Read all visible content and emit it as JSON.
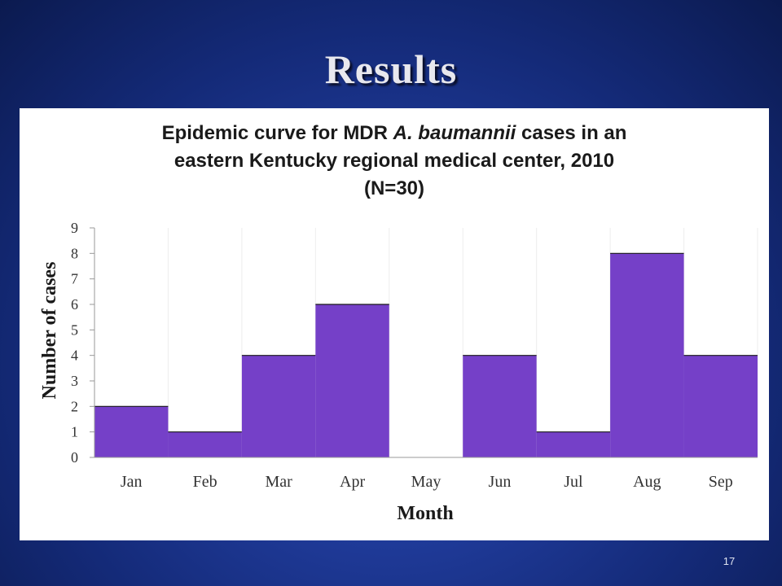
{
  "slide": {
    "title": "Results",
    "page_number": "17"
  },
  "chart_data": {
    "type": "bar",
    "title_parts": {
      "before": "Epidemic curve for MDR ",
      "italic": "A. baumannii",
      "after": " cases in an",
      "line2": "eastern Kentucky regional medical center, 2010",
      "line3": "(N=30)"
    },
    "categories": [
      "Jan",
      "Feb",
      "Mar",
      "Apr",
      "May",
      "Jun",
      "Jul",
      "Aug",
      "Sep"
    ],
    "values": [
      2,
      1,
      4,
      6,
      0,
      4,
      1,
      8,
      4
    ],
    "xlabel": "Month",
    "ylabel": "Number of cases",
    "ylim": [
      0,
      9
    ],
    "yticks": [
      "0",
      "1",
      "2",
      "3",
      "4",
      "5",
      "6",
      "7",
      "8",
      "9"
    ],
    "bar_color": "#7540c8",
    "grid": "vertical-light"
  }
}
